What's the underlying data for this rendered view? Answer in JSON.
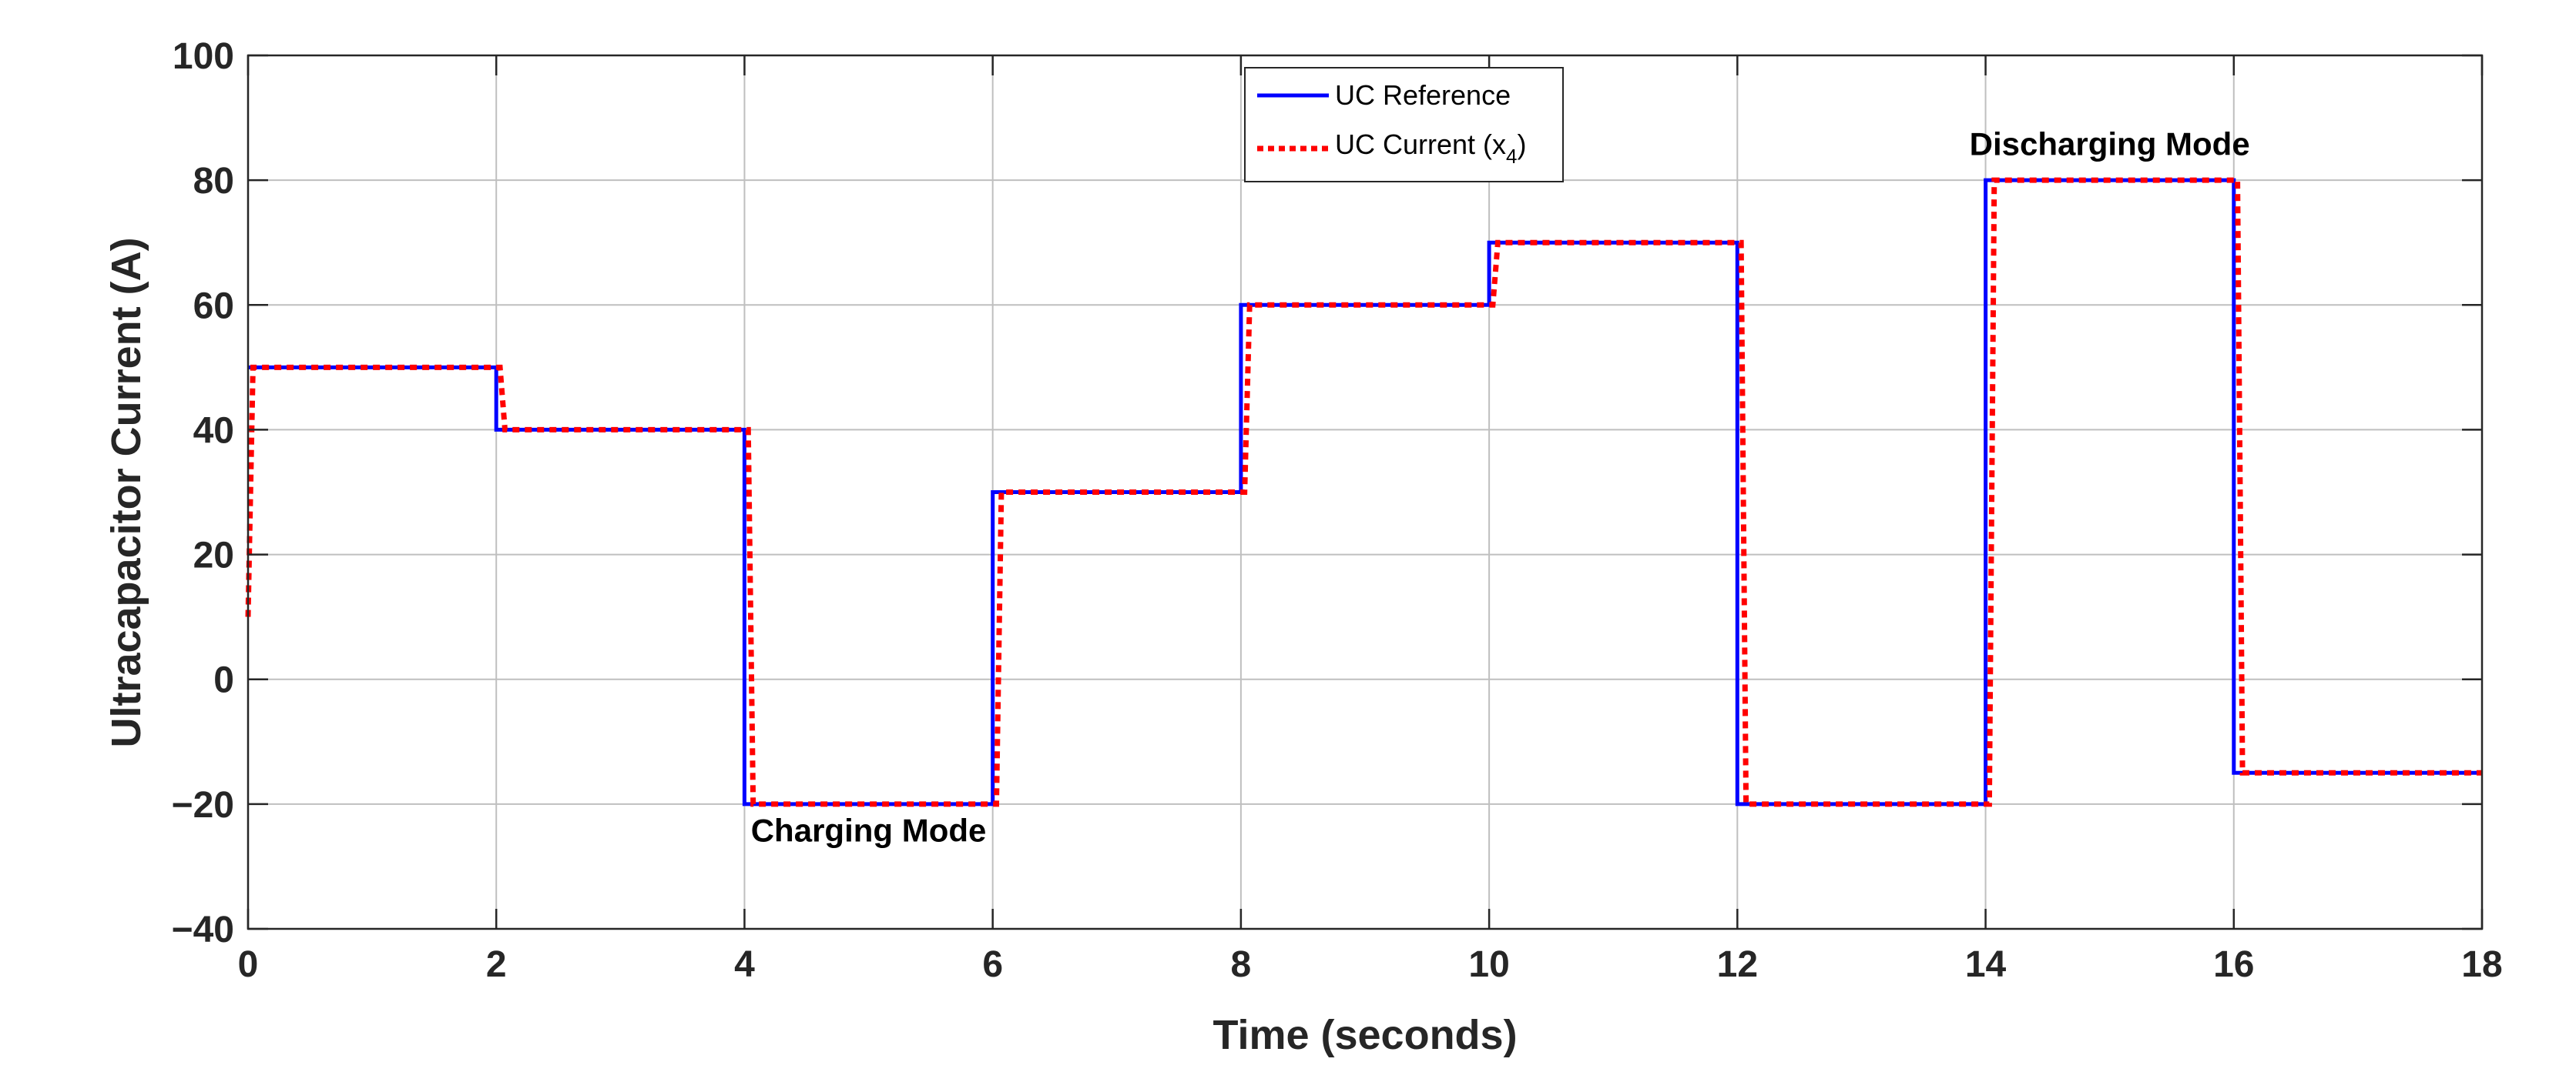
{
  "chart_data": {
    "type": "line",
    "title": "",
    "xlabel": "Time (seconds)",
    "ylabel": "Ultracapacitor Current (A)",
    "xlim": [
      0,
      18
    ],
    "ylim": [
      -40,
      100
    ],
    "xticks": [
      0,
      2,
      4,
      6,
      8,
      10,
      12,
      14,
      16,
      18
    ],
    "yticks": [
      -40,
      -20,
      0,
      20,
      40,
      60,
      80,
      100
    ],
    "xtick_labels": [
      "0",
      "2",
      "4",
      "6",
      "8",
      "10",
      "12",
      "14",
      "16",
      "18"
    ],
    "ytick_labels": [
      "−40",
      "−20",
      "0",
      "20",
      "40",
      "60",
      "80",
      "100"
    ],
    "grid": true,
    "legend": {
      "placement": "top-center",
      "entries": [
        {
          "label": "UC Reference",
          "color": "#0000ff",
          "style": "solid"
        },
        {
          "label_main": "UC Current (x",
          "label_sub": "4",
          "label_end": ")",
          "color": "#ff0000",
          "style": "dotted"
        }
      ]
    },
    "annotations": [
      {
        "text": "Charging Mode",
        "x": 5.0,
        "y": -26
      },
      {
        "text": "Discharging Mode",
        "x": 15.0,
        "y": 84
      }
    ],
    "series": [
      {
        "name": "UC Reference",
        "color": "#0000ff",
        "x": [
          0,
          2,
          2,
          4,
          4,
          6,
          6,
          8,
          8,
          10,
          10,
          12,
          12,
          14,
          14,
          16,
          16,
          18
        ],
        "y": [
          50,
          50,
          40,
          40,
          -20,
          -20,
          30,
          30,
          60,
          60,
          70,
          70,
          -20,
          -20,
          80,
          80,
          -15,
          -15
        ]
      },
      {
        "name": "UC Current (x4)",
        "color": "#ff0000",
        "x": [
          0,
          0.04,
          2.03,
          2.07,
          4.03,
          4.07,
          6.03,
          6.07,
          8.03,
          8.07,
          10.03,
          10.07,
          12.03,
          12.07,
          14.03,
          14.07,
          16.03,
          16.07,
          18
        ],
        "y": [
          10,
          50,
          50,
          40,
          40,
          -20,
          -20,
          30,
          30,
          60,
          60,
          70,
          70,
          -20,
          -20,
          80,
          80,
          -15,
          -15
        ]
      }
    ]
  }
}
